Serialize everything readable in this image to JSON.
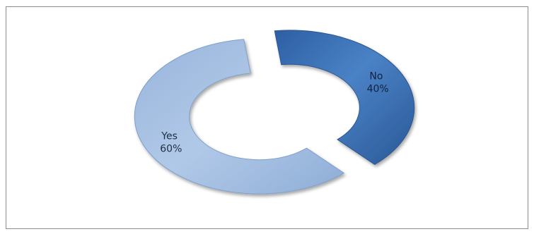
{
  "chart_data": {
    "type": "pie",
    "variant": "exploded-doughnut",
    "title": "",
    "legend": "none",
    "slices": [
      {
        "label": "No",
        "value": 40,
        "display": "40%",
        "color": "#3e73b5"
      },
      {
        "label": "Yes",
        "value": 60,
        "display": "60%",
        "color": "#a4bfe2"
      }
    ]
  }
}
